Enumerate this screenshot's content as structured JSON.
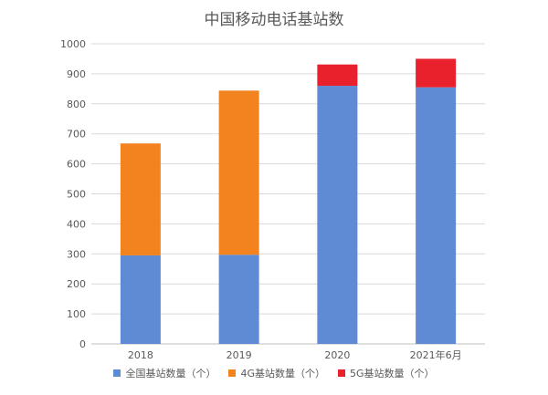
{
  "chart_data": {
    "type": "bar",
    "stacked": true,
    "title": "中国移动电话基站数",
    "categories": [
      "2018",
      "2019",
      "2020",
      "2021年6月"
    ],
    "series": [
      {
        "name": "全国基站数量（个）",
        "color": "#5f8bd4",
        "values": [
          295,
          297,
          860,
          855
        ]
      },
      {
        "name": "4G基站数量（个）",
        "color": "#f2831f",
        "values": [
          373,
          547,
          0,
          0
        ]
      },
      {
        "name": "5G基站数量（个）",
        "color": "#e8212d",
        "values": [
          0,
          0,
          71,
          95
        ]
      }
    ],
    "ylim": [
      0,
      1000
    ],
    "yticks": [
      0,
      100,
      200,
      300,
      400,
      500,
      600,
      700,
      800,
      900,
      1000
    ],
    "xlabel": "",
    "ylabel": "",
    "grid": true,
    "legend_position": "bottom"
  }
}
